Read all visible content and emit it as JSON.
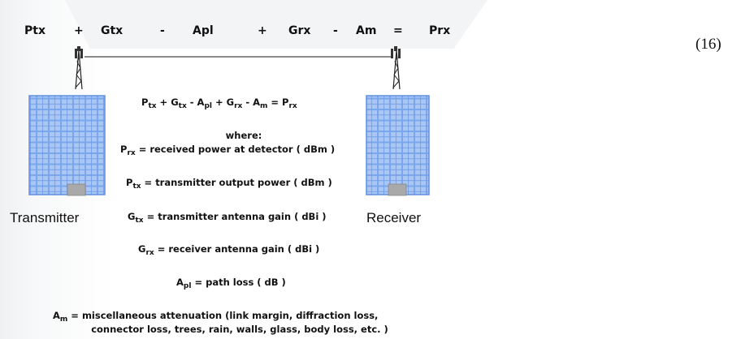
{
  "top_equation": {
    "ptx": "Ptx",
    "plus1": "+",
    "gtx": "Gtx",
    "minus1": "-",
    "apl": "Apl",
    "plus2": "+",
    "grx": "Grx",
    "minus2": "-",
    "am": "Am",
    "equals": "=",
    "prx": "Prx"
  },
  "equation_number": "(16)",
  "transmitter_label": "Transmitter",
  "receiver_label": "Receiver",
  "formula": {
    "p": "P",
    "tx": "tx",
    "plus_g": " + G",
    "tx2": "tx",
    "minus_a": " - A",
    "pl": "pl",
    "plus_g2": " + G",
    "rx": "rx",
    "minus_a2": " - A",
    "m": "m",
    "eq_p": " = P",
    "rx2": "rx"
  },
  "where": "where:",
  "definitions": [
    {
      "sym": "P",
      "sub": "rx",
      "text": " = received power at detector ( dBm )"
    },
    {
      "sym": "P",
      "sub": "tx",
      "text": " = transmitter output power ( dBm )"
    },
    {
      "sym": "G",
      "sub": "tx",
      "text": " = transmitter antenna gain ( dBi )"
    },
    {
      "sym": "G",
      "sub": "rx",
      "text": " = receiver antenna gain ( dBi )"
    },
    {
      "sym": "A",
      "sub": "pl",
      "text": " = path loss ( dB )"
    },
    {
      "sym": "A",
      "sub": "m",
      "text": " = miscellaneous attenuation (link margin, diffraction loss,"
    }
  ],
  "definition_continuation": "connector loss, trees, rain, walls, glass, body loss, etc. )",
  "colors": {
    "building_blue": "#5d8fe0",
    "building_light": "#a9c6f5",
    "door_gray": "#a9a9a9"
  }
}
